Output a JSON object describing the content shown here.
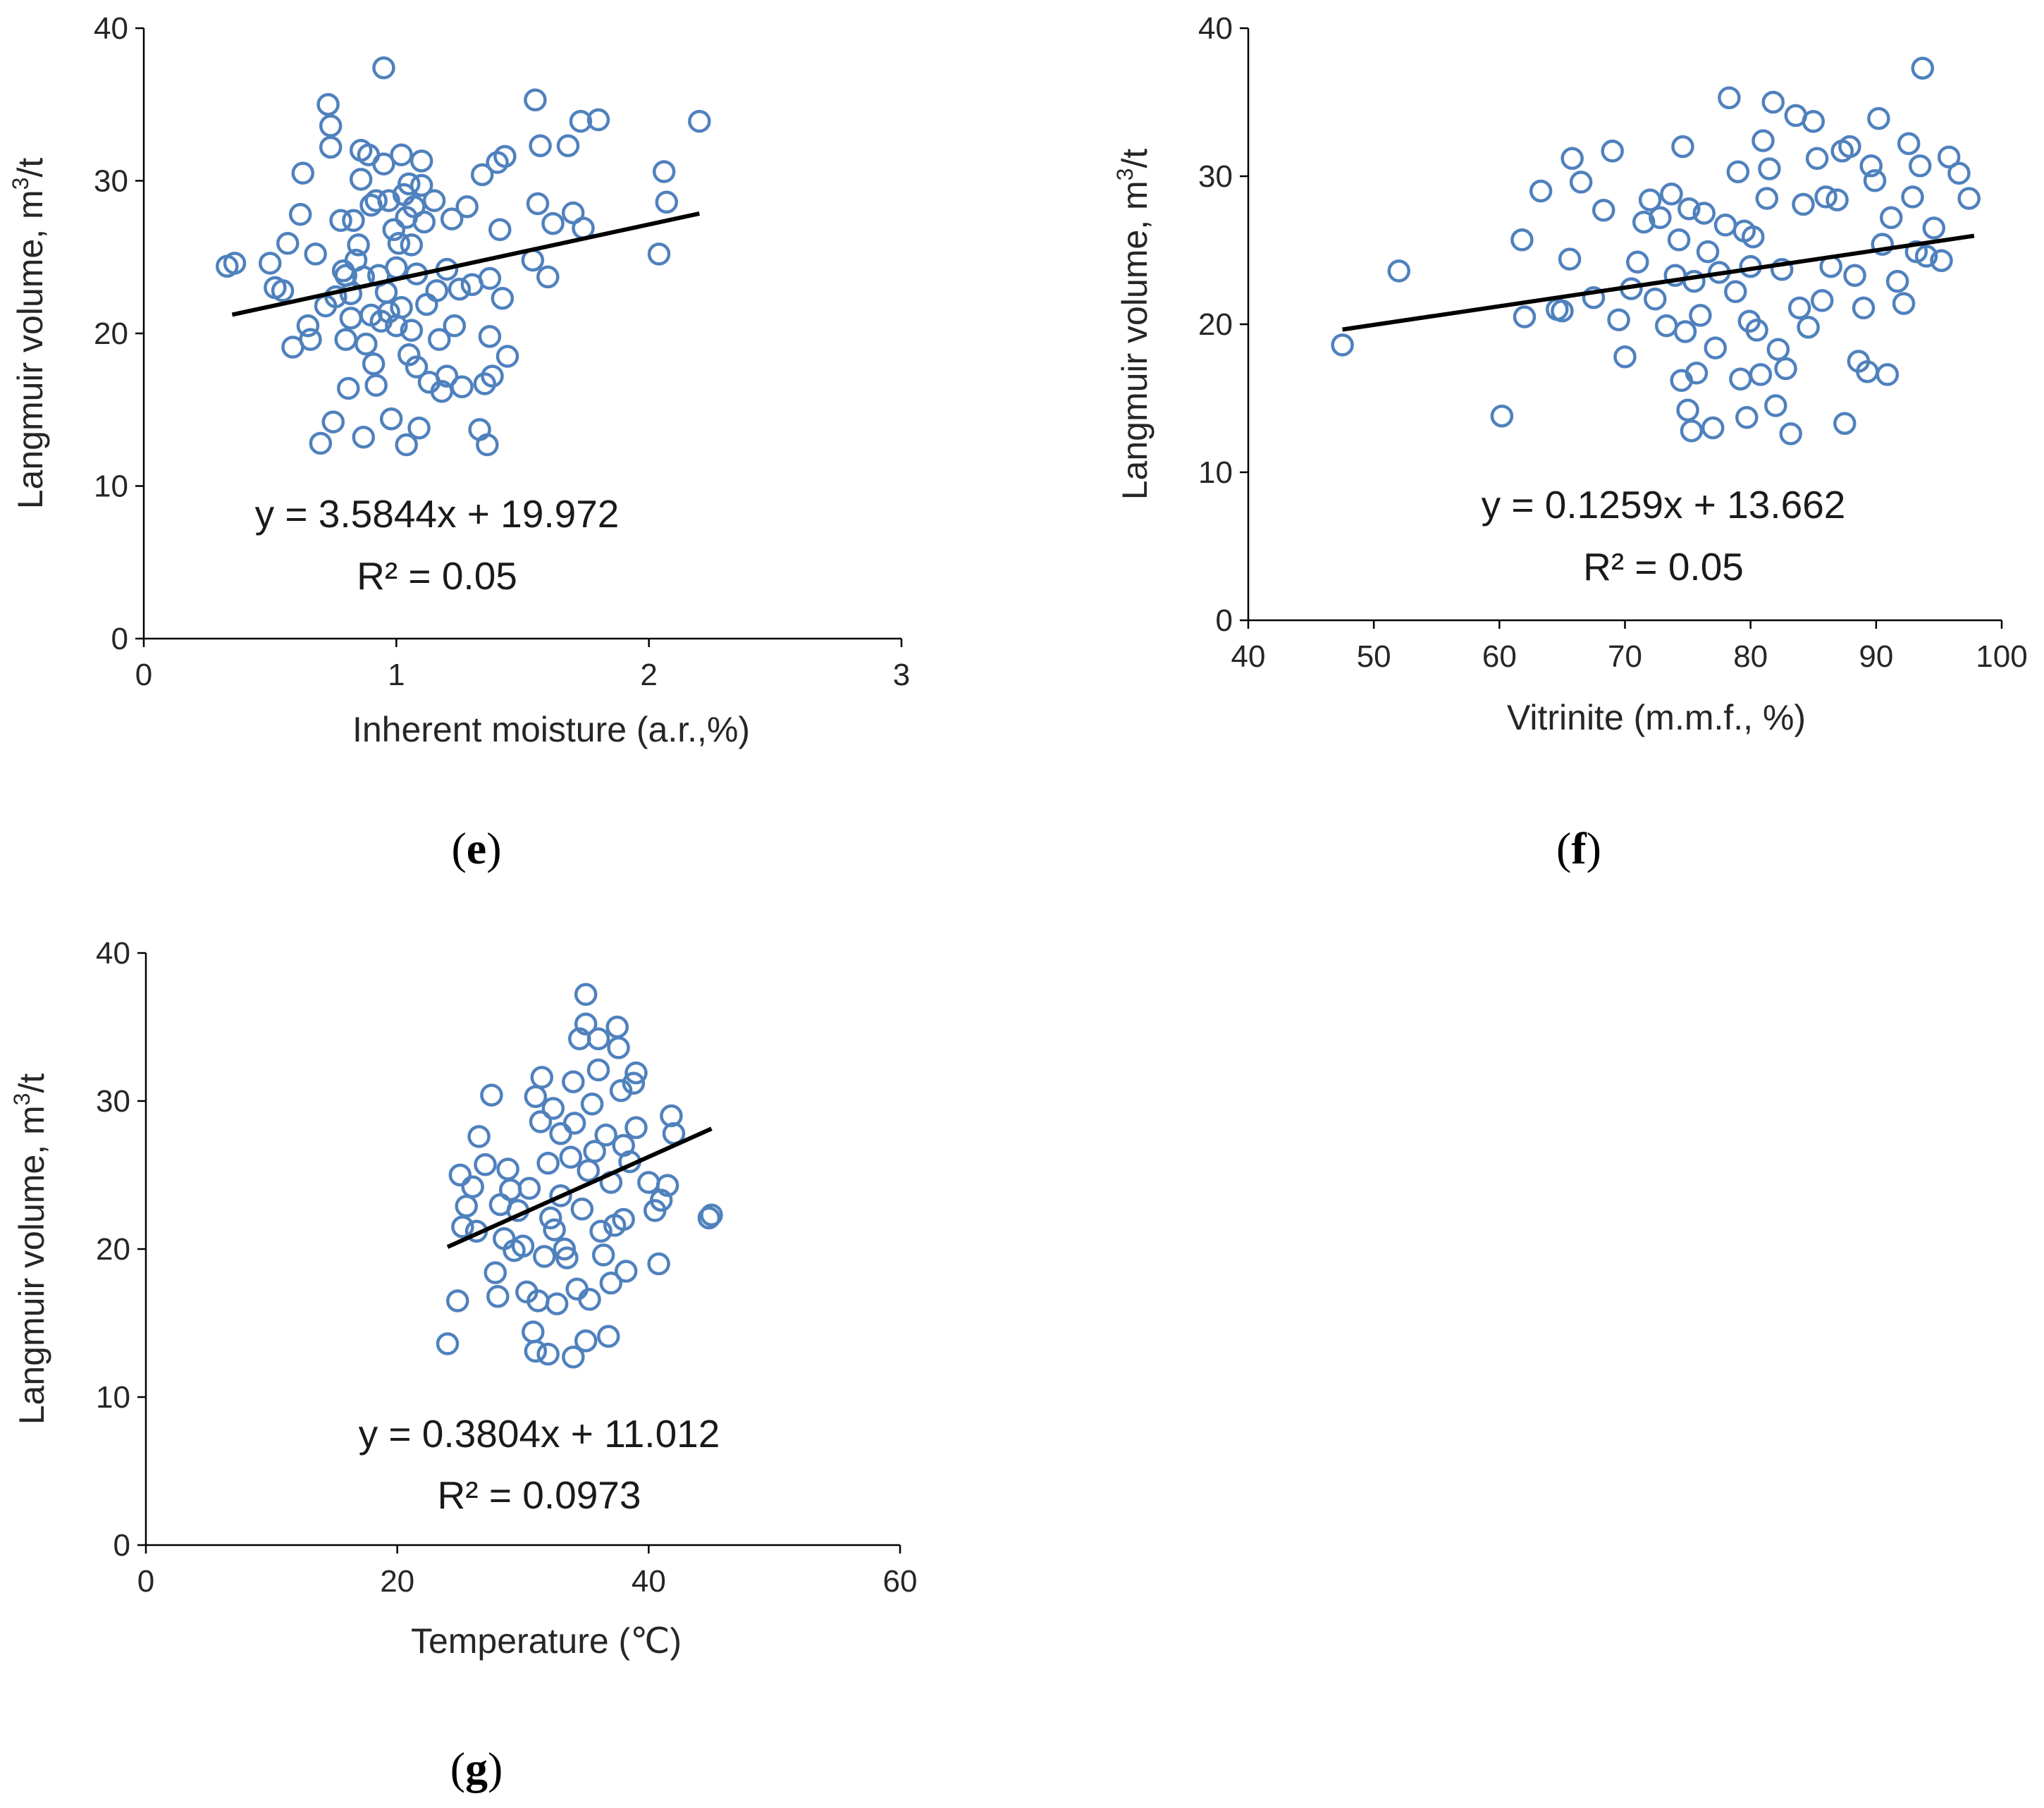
{
  "colors": {
    "marker": "#4f81bd",
    "trendline": "#000000"
  },
  "chart_data": [
    {
      "id": "e",
      "type": "scatter",
      "panel_label": "e",
      "xlabel": "Inherent moisture (a.r.,%)",
      "ylabel": "Langmuir volume, m",
      "ylabel_sup": "3",
      "ylabel_tail": "/t",
      "xlim": [
        0,
        3
      ],
      "ylim": [
        0,
        40
      ],
      "xticks": [
        0,
        1,
        2,
        3
      ],
      "yticks": [
        0,
        10,
        20,
        30,
        40
      ],
      "xtick_labels": [
        "0",
        "1",
        "2",
        "3"
      ],
      "ytick_labels": [
        "0",
        "10",
        "20",
        "30",
        "40"
      ],
      "equation": "y = 3.5844x + 19.972",
      "r_squared": "R² = 0.05",
      "trendline": {
        "slope": 3.5844,
        "intercept": 19.972,
        "x_range": [
          0.35,
          2.2
        ]
      },
      "points": [
        [
          0.33,
          24.4
        ],
        [
          0.36,
          24.6
        ],
        [
          0.5,
          24.6
        ],
        [
          0.52,
          23
        ],
        [
          0.55,
          22.8
        ],
        [
          0.57,
          25.9
        ],
        [
          0.59,
          19.1
        ],
        [
          0.62,
          27.8
        ],
        [
          0.63,
          30.5
        ],
        [
          0.65,
          20.5
        ],
        [
          0.66,
          19.6
        ],
        [
          0.68,
          25.2
        ],
        [
          0.7,
          12.8
        ],
        [
          0.72,
          21.8
        ],
        [
          0.73,
          35
        ],
        [
          0.74,
          33.6
        ],
        [
          0.74,
          32.2
        ],
        [
          0.75,
          14.2
        ],
        [
          0.76,
          22.4
        ],
        [
          0.78,
          27.4
        ],
        [
          0.79,
          24.1
        ],
        [
          0.8,
          23.8
        ],
        [
          0.8,
          19.6
        ],
        [
          0.81,
          16.4
        ],
        [
          0.82,
          22.6
        ],
        [
          0.82,
          21
        ],
        [
          0.83,
          27.4
        ],
        [
          0.84,
          24.8
        ],
        [
          0.85,
          25.8
        ],
        [
          0.86,
          32
        ],
        [
          0.86,
          30.1
        ],
        [
          0.87,
          13.2
        ],
        [
          0.87,
          23.7
        ],
        [
          0.88,
          19.3
        ],
        [
          0.89,
          31.7
        ],
        [
          0.9,
          28.4
        ],
        [
          0.9,
          21.2
        ],
        [
          0.91,
          18
        ],
        [
          0.92,
          16.6
        ],
        [
          0.92,
          28.7
        ],
        [
          0.93,
          23.8
        ],
        [
          0.94,
          20.8
        ],
        [
          0.95,
          37.4
        ],
        [
          0.95,
          31.1
        ],
        [
          0.96,
          22.7
        ],
        [
          0.97,
          28.7
        ],
        [
          0.97,
          21.4
        ],
        [
          0.98,
          14.4
        ],
        [
          0.99,
          26.8
        ],
        [
          1,
          24.3
        ],
        [
          1,
          20.5
        ],
        [
          1.01,
          25.9
        ],
        [
          1.02,
          31.7
        ],
        [
          1.02,
          21.7
        ],
        [
          1.03,
          29.1
        ],
        [
          1.04,
          27.6
        ],
        [
          1.04,
          12.7
        ],
        [
          1.05,
          29.8
        ],
        [
          1.05,
          18.6
        ],
        [
          1.06,
          25.8
        ],
        [
          1.06,
          20.2
        ],
        [
          1.07,
          28.3
        ],
        [
          1.08,
          17.8
        ],
        [
          1.08,
          23.9
        ],
        [
          1.09,
          13.8
        ],
        [
          1.1,
          31.3
        ],
        [
          1.1,
          29.7
        ],
        [
          1.11,
          27.3
        ],
        [
          1.12,
          21.9
        ],
        [
          1.13,
          16.8
        ],
        [
          1.15,
          28.7
        ],
        [
          1.16,
          22.8
        ],
        [
          1.17,
          19.6
        ],
        [
          1.18,
          16.2
        ],
        [
          1.2,
          24.2
        ],
        [
          1.2,
          17.2
        ],
        [
          1.22,
          27.5
        ],
        [
          1.23,
          20.5
        ],
        [
          1.25,
          22.9
        ],
        [
          1.26,
          16.5
        ],
        [
          1.28,
          28.3
        ],
        [
          1.3,
          23.2
        ],
        [
          1.33,
          13.7
        ],
        [
          1.34,
          30.4
        ],
        [
          1.35,
          16.7
        ],
        [
          1.36,
          12.7
        ],
        [
          1.37,
          19.8
        ],
        [
          1.37,
          23.6
        ],
        [
          1.38,
          17.2
        ],
        [
          1.4,
          31.2
        ],
        [
          1.41,
          26.8
        ],
        [
          1.42,
          22.3
        ],
        [
          1.43,
          31.6
        ],
        [
          1.44,
          18.5
        ],
        [
          1.54,
          24.8
        ],
        [
          1.55,
          35.3
        ],
        [
          1.56,
          28.5
        ],
        [
          1.57,
          32.3
        ],
        [
          1.6,
          23.7
        ],
        [
          1.62,
          27.2
        ],
        [
          1.68,
          32.3
        ],
        [
          1.7,
          27.9
        ],
        [
          1.73,
          33.9
        ],
        [
          1.74,
          26.9
        ],
        [
          1.8,
          34
        ],
        [
          2.04,
          25.2
        ],
        [
          2.06,
          30.6
        ],
        [
          2.07,
          28.6
        ],
        [
          2.2,
          33.9
        ]
      ]
    },
    {
      "id": "f",
      "type": "scatter",
      "panel_label": "f",
      "xlabel": "Vitrinite (m.m.f., %)",
      "ylabel": "Langmuir volume, m",
      "ylabel_sup": "3",
      "ylabel_tail": "/t",
      "xlim": [
        40,
        100
      ],
      "ylim": [
        0,
        40
      ],
      "xticks": [
        40,
        50,
        60,
        70,
        80,
        90,
        100
      ],
      "yticks": [
        0,
        10,
        20,
        30,
        40
      ],
      "xtick_labels": [
        "40",
        "50",
        "60",
        "70",
        "80",
        "90",
        "100"
      ],
      "ytick_labels": [
        "0",
        "10",
        "20",
        "30",
        "40"
      ],
      "equation": "y = 0.1259x + 13.662",
      "r_squared": "R² = 0.05",
      "trendline": {
        "slope": 0.1259,
        "intercept": 13.662,
        "x_range": [
          47.5,
          97.8
        ]
      },
      "points": [
        [
          47.5,
          18.6
        ],
        [
          52,
          23.6
        ],
        [
          60.2,
          13.8
        ],
        [
          61.8,
          25.7
        ],
        [
          62,
          20.5
        ],
        [
          63.3,
          29
        ],
        [
          64.6,
          21
        ],
        [
          65,
          20.9
        ],
        [
          65.6,
          24.4
        ],
        [
          65.8,
          31.2
        ],
        [
          66.5,
          29.6
        ],
        [
          67.5,
          21.8
        ],
        [
          68.3,
          27.7
        ],
        [
          69,
          31.7
        ],
        [
          69.5,
          20.3
        ],
        [
          70,
          17.8
        ],
        [
          70.5,
          22.4
        ],
        [
          71,
          24.2
        ],
        [
          71.5,
          26.9
        ],
        [
          72,
          28.4
        ],
        [
          72.4,
          21.7
        ],
        [
          72.8,
          27.2
        ],
        [
          73.3,
          19.9
        ],
        [
          73.7,
          28.8
        ],
        [
          74,
          23.3
        ],
        [
          74.3,
          25.7
        ],
        [
          74.5,
          16.2
        ],
        [
          74.6,
          32
        ],
        [
          74.8,
          19.5
        ],
        [
          75,
          14.2
        ],
        [
          75.1,
          27.8
        ],
        [
          75.3,
          12.8
        ],
        [
          75.5,
          22.9
        ],
        [
          75.7,
          16.7
        ],
        [
          76,
          20.6
        ],
        [
          76.3,
          27.5
        ],
        [
          76.6,
          24.9
        ],
        [
          77,
          13
        ],
        [
          77.2,
          18.4
        ],
        [
          77.5,
          23.5
        ],
        [
          78,
          26.7
        ],
        [
          78.3,
          35.3
        ],
        [
          78.8,
          22.2
        ],
        [
          79,
          30.3
        ],
        [
          79.2,
          16.3
        ],
        [
          79.5,
          26.3
        ],
        [
          79.7,
          13.7
        ],
        [
          79.9,
          20.2
        ],
        [
          80,
          23.9
        ],
        [
          80.2,
          25.9
        ],
        [
          80.5,
          19.6
        ],
        [
          80.8,
          16.6
        ],
        [
          81,
          32.4
        ],
        [
          81.3,
          28.5
        ],
        [
          81.5,
          30.5
        ],
        [
          81.8,
          35
        ],
        [
          82,
          14.5
        ],
        [
          82.2,
          18.3
        ],
        [
          82.5,
          23.7
        ],
        [
          82.8,
          17
        ],
        [
          83.2,
          12.6
        ],
        [
          83.6,
          34.1
        ],
        [
          83.9,
          21.1
        ],
        [
          84.2,
          28.1
        ],
        [
          84.6,
          19.8
        ],
        [
          85,
          33.7
        ],
        [
          85.3,
          31.2
        ],
        [
          85.7,
          21.6
        ],
        [
          86,
          28.6
        ],
        [
          86.4,
          23.9
        ],
        [
          86.9,
          28.4
        ],
        [
          87.3,
          31.7
        ],
        [
          87.5,
          13.3
        ],
        [
          87.9,
          32
        ],
        [
          88.3,
          23.3
        ],
        [
          88.6,
          17.5
        ],
        [
          89,
          21.1
        ],
        [
          89.3,
          16.8
        ],
        [
          89.6,
          30.7
        ],
        [
          89.9,
          29.7
        ],
        [
          90.2,
          33.9
        ],
        [
          90.5,
          25.4
        ],
        [
          90.9,
          16.6
        ],
        [
          91.2,
          27.2
        ],
        [
          91.7,
          22.9
        ],
        [
          92.2,
          21.4
        ],
        [
          92.6,
          32.2
        ],
        [
          92.9,
          28.6
        ],
        [
          93.2,
          24.9
        ],
        [
          93.5,
          30.7
        ],
        [
          93.7,
          37.3
        ],
        [
          94,
          24.6
        ],
        [
          94.6,
          26.5
        ],
        [
          95.2,
          24.3
        ],
        [
          95.8,
          31.3
        ],
        [
          96.6,
          30.2
        ],
        [
          97.4,
          28.5
        ]
      ]
    },
    {
      "id": "g",
      "type": "scatter",
      "panel_label": "g",
      "xlabel": "Temperature (℃)",
      "ylabel": "Langmuir volume, m",
      "ylabel_sup": "3",
      "ylabel_tail": "/t",
      "xlim": [
        0,
        60
      ],
      "ylim": [
        0,
        40
      ],
      "xticks": [
        0,
        20,
        40,
        60
      ],
      "yticks": [
        0,
        10,
        20,
        30,
        40
      ],
      "xtick_labels": [
        "0",
        "20",
        "40",
        "60"
      ],
      "ytick_labels": [
        "0",
        "10",
        "20",
        "30",
        "40"
      ],
      "equation": "y = 0.3804x + 11.012",
      "r_squared": "R² = 0.0973",
      "trendline": {
        "slope": 0.3804,
        "intercept": 11.012,
        "x_range": [
          24,
          45
        ]
      },
      "points": [
        [
          24,
          13.6
        ],
        [
          24.8,
          16.5
        ],
        [
          25,
          25
        ],
        [
          25.2,
          21.5
        ],
        [
          25.5,
          22.9
        ],
        [
          26,
          24.2
        ],
        [
          26.3,
          21.2
        ],
        [
          26.5,
          27.6
        ],
        [
          27,
          25.7
        ],
        [
          27.5,
          30.4
        ],
        [
          27.8,
          18.4
        ],
        [
          28,
          16.8
        ],
        [
          28.2,
          23
        ],
        [
          28.5,
          20.7
        ],
        [
          28.8,
          25.4
        ],
        [
          29,
          24
        ],
        [
          29.3,
          19.9
        ],
        [
          29.6,
          22.6
        ],
        [
          30,
          20.2
        ],
        [
          30.3,
          17.1
        ],
        [
          30.5,
          24.1
        ],
        [
          30.8,
          14.4
        ],
        [
          31,
          13.1
        ],
        [
          31,
          30.3
        ],
        [
          31.2,
          16.5
        ],
        [
          31.4,
          28.6
        ],
        [
          31.5,
          31.6
        ],
        [
          31.7,
          19.5
        ],
        [
          32,
          25.8
        ],
        [
          32,
          12.9
        ],
        [
          32.2,
          22.1
        ],
        [
          32.4,
          29.5
        ],
        [
          32.5,
          21.3
        ],
        [
          32.7,
          16.3
        ],
        [
          33,
          23.6
        ],
        [
          33,
          27.8
        ],
        [
          33.3,
          20
        ],
        [
          33.5,
          19.4
        ],
        [
          33.8,
          26.2
        ],
        [
          34,
          12.7
        ],
        [
          34,
          31.3
        ],
        [
          34.1,
          28.5
        ],
        [
          34.3,
          17.3
        ],
        [
          34.5,
          34.2
        ],
        [
          34.7,
          22.7
        ],
        [
          35,
          37.2
        ],
        [
          35,
          35.2
        ],
        [
          35,
          13.8
        ],
        [
          35.2,
          25.3
        ],
        [
          35.3,
          16.6
        ],
        [
          35.5,
          29.8
        ],
        [
          35.7,
          26.6
        ],
        [
          36,
          32.1
        ],
        [
          36,
          34.2
        ],
        [
          36.2,
          21.2
        ],
        [
          36.4,
          19.6
        ],
        [
          36.6,
          27.7
        ],
        [
          36.8,
          14.1
        ],
        [
          37,
          24.5
        ],
        [
          37,
          17.7
        ],
        [
          37.3,
          21.6
        ],
        [
          37.5,
          35
        ],
        [
          37.6,
          33.6
        ],
        [
          37.8,
          30.7
        ],
        [
          38,
          22
        ],
        [
          38,
          27
        ],
        [
          38.2,
          18.5
        ],
        [
          38.5,
          25.9
        ],
        [
          38.8,
          31.2
        ],
        [
          39,
          31.9
        ],
        [
          39,
          28.2
        ],
        [
          40,
          24.5
        ],
        [
          40.5,
          22.6
        ],
        [
          40.8,
          19
        ],
        [
          41,
          23.3
        ],
        [
          41.5,
          24.3
        ],
        [
          41.8,
          29
        ],
        [
          42,
          27.8
        ],
        [
          44.8,
          22.1
        ],
        [
          45,
          22.3
        ]
      ]
    }
  ]
}
